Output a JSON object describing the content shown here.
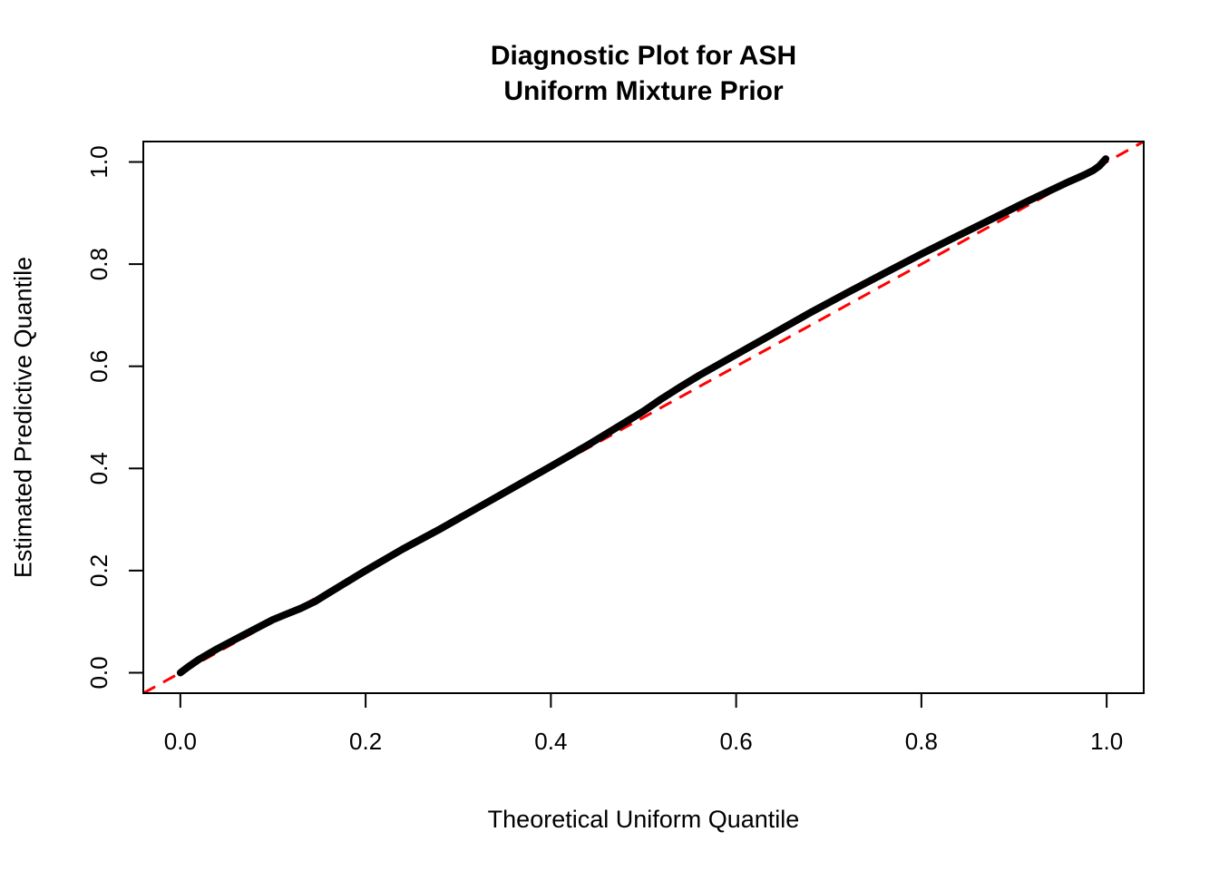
{
  "title": {
    "line1": "Diagnostic Plot for ASH",
    "line2": "Uniform Mixture Prior"
  },
  "axes": {
    "x_label": "Theoretical Uniform Quantile",
    "y_label": "Estimated Predictive Quantile"
  },
  "colors": {
    "background": "#ffffff",
    "curve": "#000000",
    "reference_line": "#ff0000",
    "axis": "#000000",
    "text": "#000000"
  },
  "chart_data": {
    "type": "line",
    "title": "Diagnostic Plot for ASH\nUniform Mixture Prior",
    "xlabel": "Theoretical Uniform Quantile",
    "ylabel": "Estimated Predictive Quantile",
    "xlim": [
      -0.04,
      1.04
    ],
    "ylim": [
      -0.04,
      1.04
    ],
    "grid": false,
    "legend": null,
    "x_ticks": {
      "values": [
        0.0,
        0.2,
        0.4,
        0.6,
        0.8,
        1.0
      ],
      "labels": [
        "0.0",
        "0.2",
        "0.4",
        "0.6",
        "0.8",
        "1.0"
      ]
    },
    "y_ticks": {
      "values": [
        0.0,
        0.2,
        0.4,
        0.6,
        0.8,
        1.0
      ],
      "labels": [
        "0.0",
        "0.2",
        "0.4",
        "0.6",
        "0.8",
        "1.0"
      ]
    },
    "series": [
      {
        "name": "estimated-predictive-quantile-curve",
        "color": "#000000",
        "width": 8,
        "style": "solid",
        "points": [
          [
            0.0,
            0.0
          ],
          [
            0.008,
            0.011
          ],
          [
            0.02,
            0.026
          ],
          [
            0.04,
            0.047
          ],
          [
            0.06,
            0.066
          ],
          [
            0.08,
            0.085
          ],
          [
            0.1,
            0.104
          ],
          [
            0.115,
            0.115
          ],
          [
            0.13,
            0.126
          ],
          [
            0.145,
            0.139
          ],
          [
            0.16,
            0.156
          ],
          [
            0.18,
            0.178
          ],
          [
            0.2,
            0.2
          ],
          [
            0.24,
            0.242
          ],
          [
            0.28,
            0.281
          ],
          [
            0.32,
            0.322
          ],
          [
            0.36,
            0.363
          ],
          [
            0.4,
            0.404
          ],
          [
            0.44,
            0.446
          ],
          [
            0.47,
            0.479
          ],
          [
            0.5,
            0.512
          ],
          [
            0.52,
            0.537
          ],
          [
            0.54,
            0.56
          ],
          [
            0.56,
            0.582
          ],
          [
            0.6,
            0.623
          ],
          [
            0.64,
            0.664
          ],
          [
            0.68,
            0.705
          ],
          [
            0.72,
            0.744
          ],
          [
            0.76,
            0.782
          ],
          [
            0.8,
            0.82
          ],
          [
            0.84,
            0.856
          ],
          [
            0.88,
            0.892
          ],
          [
            0.91,
            0.919
          ],
          [
            0.94,
            0.945
          ],
          [
            0.96,
            0.962
          ],
          [
            0.975,
            0.974
          ],
          [
            0.985,
            0.983
          ],
          [
            0.992,
            0.992
          ],
          [
            0.996,
            1.0
          ],
          [
            0.999,
            1.006
          ]
        ]
      }
    ],
    "reference_line": {
      "name": "identity-line",
      "slope": 1,
      "intercept": 0,
      "color": "#ff0000",
      "style": "dashed",
      "width": 3
    }
  }
}
